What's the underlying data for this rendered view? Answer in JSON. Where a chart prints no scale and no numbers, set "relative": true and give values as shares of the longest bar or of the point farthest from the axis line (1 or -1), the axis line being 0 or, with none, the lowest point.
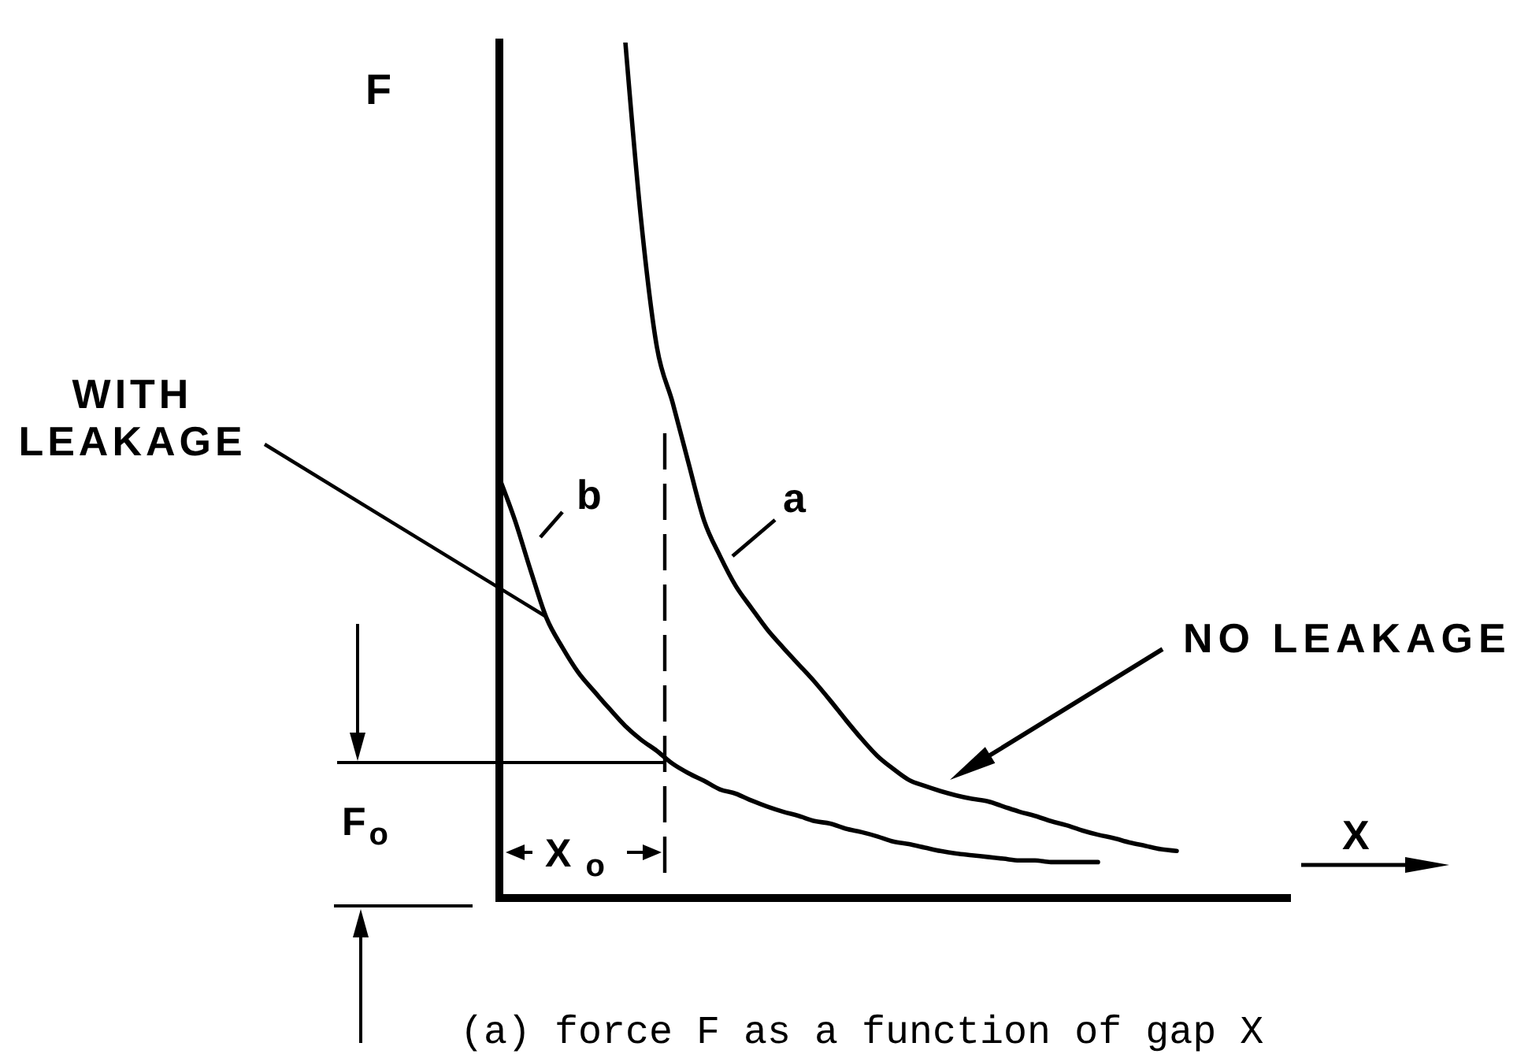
{
  "chart_data": {
    "type": "line",
    "relative": true,
    "xlabel": "X",
    "ylabel": "F",
    "categories": [
      null,
      null,
      null,
      null,
      null,
      null,
      null,
      null,
      null,
      null,
      null,
      null,
      null,
      null,
      null,
      null,
      null,
      null,
      null,
      null,
      null,
      null,
      null,
      null,
      null,
      null,
      null,
      null,
      null,
      null,
      null,
      null,
      null,
      null,
      null,
      null,
      null,
      null,
      null,
      null,
      null,
      null,
      null,
      null,
      null,
      null,
      null,
      null,
      null,
      null,
      null
    ],
    "series": [
      {
        "name": "a",
        "color": "#000000",
        "values": [
          null,
          null,
          null,
          null,
          null,
          null,
          null,
          null,
          1,
          0.792,
          0.644,
          0.579,
          0.509,
          0.441,
          0.4,
          0.365,
          0.339,
          0.314,
          0.293,
          0.273,
          0.253,
          0.231,
          0.208,
          0.186,
          0.166,
          0.151,
          0.138,
          0.131,
          0.125,
          0.12,
          0.116,
          0.113,
          0.107,
          0.101,
          0.096,
          0.09,
          0.085,
          0.079,
          0.074,
          0.07,
          0.065,
          0.061,
          0.057,
          0.055,
          null,
          null,
          null,
          null,
          null,
          null,
          null
        ]
      },
      {
        "name": "b",
        "color": "#000000",
        "values": [
          0.491,
          0.441,
          0.382,
          0.327,
          0.293,
          0.264,
          0.242,
          0.221,
          0.201,
          0.185,
          0.172,
          0.157,
          0.146,
          0.137,
          0.127,
          0.122,
          0.114,
          0.107,
          0.101,
          0.096,
          0.09,
          0.087,
          0.081,
          0.077,
          0.072,
          0.066,
          0.063,
          0.059,
          0.055,
          0.052,
          0.05,
          0.048,
          0.046,
          0.044,
          0.044,
          0.042,
          0.042,
          0.042,
          0.042,
          null,
          null,
          null,
          null,
          null,
          null,
          null,
          null,
          null,
          null,
          null,
          null
        ]
      }
    ],
    "annotations": [
      "WITH LEAKAGE",
      "NO LEAKAGE",
      "F$_{o}$",
      "X$_{o}$",
      "(a) force F as a function of gap X"
    ]
  }
}
